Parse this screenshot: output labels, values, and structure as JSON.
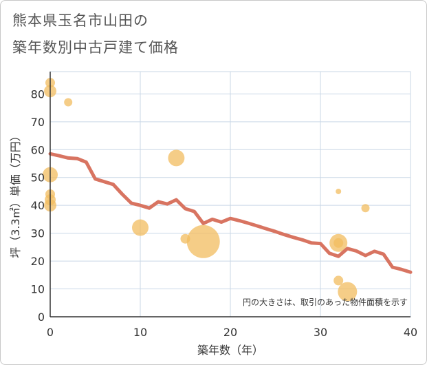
{
  "chart_data": {
    "type": "scatter+line",
    "title_line1": "熊本県玉名市山田の",
    "title_line2": "築年数別中古戸建て価格",
    "xlabel": "築年数（年）",
    "ylabel": "坪（3.3㎡）単価（万円）",
    "xlim": [
      0,
      40
    ],
    "ylim": [
      0,
      88
    ],
    "xticks": [
      0,
      10,
      20,
      30,
      40
    ],
    "yticks": [
      0,
      10,
      20,
      30,
      40,
      50,
      60,
      70,
      80
    ],
    "grid": true,
    "note": "円の大きさは、取引のあった物件面積を示す",
    "colors": {
      "line": "#d87461",
      "bubble": "#f2bc5f",
      "grid": "#c9d7e6",
      "axis": "#333333"
    },
    "line": {
      "x": [
        0,
        1,
        2,
        3,
        4,
        5,
        6,
        7,
        8,
        9,
        10,
        11,
        12,
        13,
        14,
        15,
        16,
        17,
        18,
        19,
        20,
        21,
        22,
        23,
        24,
        25,
        26,
        27,
        28,
        29,
        30,
        31,
        32,
        33,
        34,
        35,
        36,
        37,
        38,
        39,
        40
      ],
      "y": [
        58.5,
        57.8,
        57,
        56.8,
        55.5,
        49.5,
        48.5,
        47.5,
        44,
        40.8,
        40,
        39,
        41.3,
        40.5,
        42,
        38.8,
        37.8,
        33.5,
        35,
        34,
        35.3,
        34.5,
        33.6,
        32.6,
        31.6,
        30.6,
        29.5,
        28.5,
        27.6,
        26.5,
        26.3,
        22.8,
        21.7,
        24.5,
        23.6,
        22,
        23.5,
        22.5,
        17.8,
        17,
        16
      ]
    },
    "bubbles": [
      {
        "x": 0,
        "y": 84,
        "size": 7
      },
      {
        "x": 0,
        "y": 81,
        "size": 9
      },
      {
        "x": 2,
        "y": 77,
        "size": 6
      },
      {
        "x": 0,
        "y": 51,
        "size": 11
      },
      {
        "x": 0,
        "y": 44,
        "size": 7
      },
      {
        "x": 0,
        "y": 42,
        "size": 8
      },
      {
        "x": 0,
        "y": 40,
        "size": 9
      },
      {
        "x": 10,
        "y": 32,
        "size": 12
      },
      {
        "x": 14,
        "y": 57,
        "size": 12
      },
      {
        "x": 15,
        "y": 28,
        "size": 7
      },
      {
        "x": 17,
        "y": 27,
        "size": 24
      },
      {
        "x": 32,
        "y": 45,
        "size": 4
      },
      {
        "x": 35,
        "y": 39,
        "size": 6
      },
      {
        "x": 32,
        "y": 26.5,
        "size": 13
      },
      {
        "x": 32,
        "y": 26.5,
        "size": 7
      },
      {
        "x": 32,
        "y": 13,
        "size": 7
      },
      {
        "x": 33,
        "y": 9,
        "size": 14
      }
    ]
  }
}
